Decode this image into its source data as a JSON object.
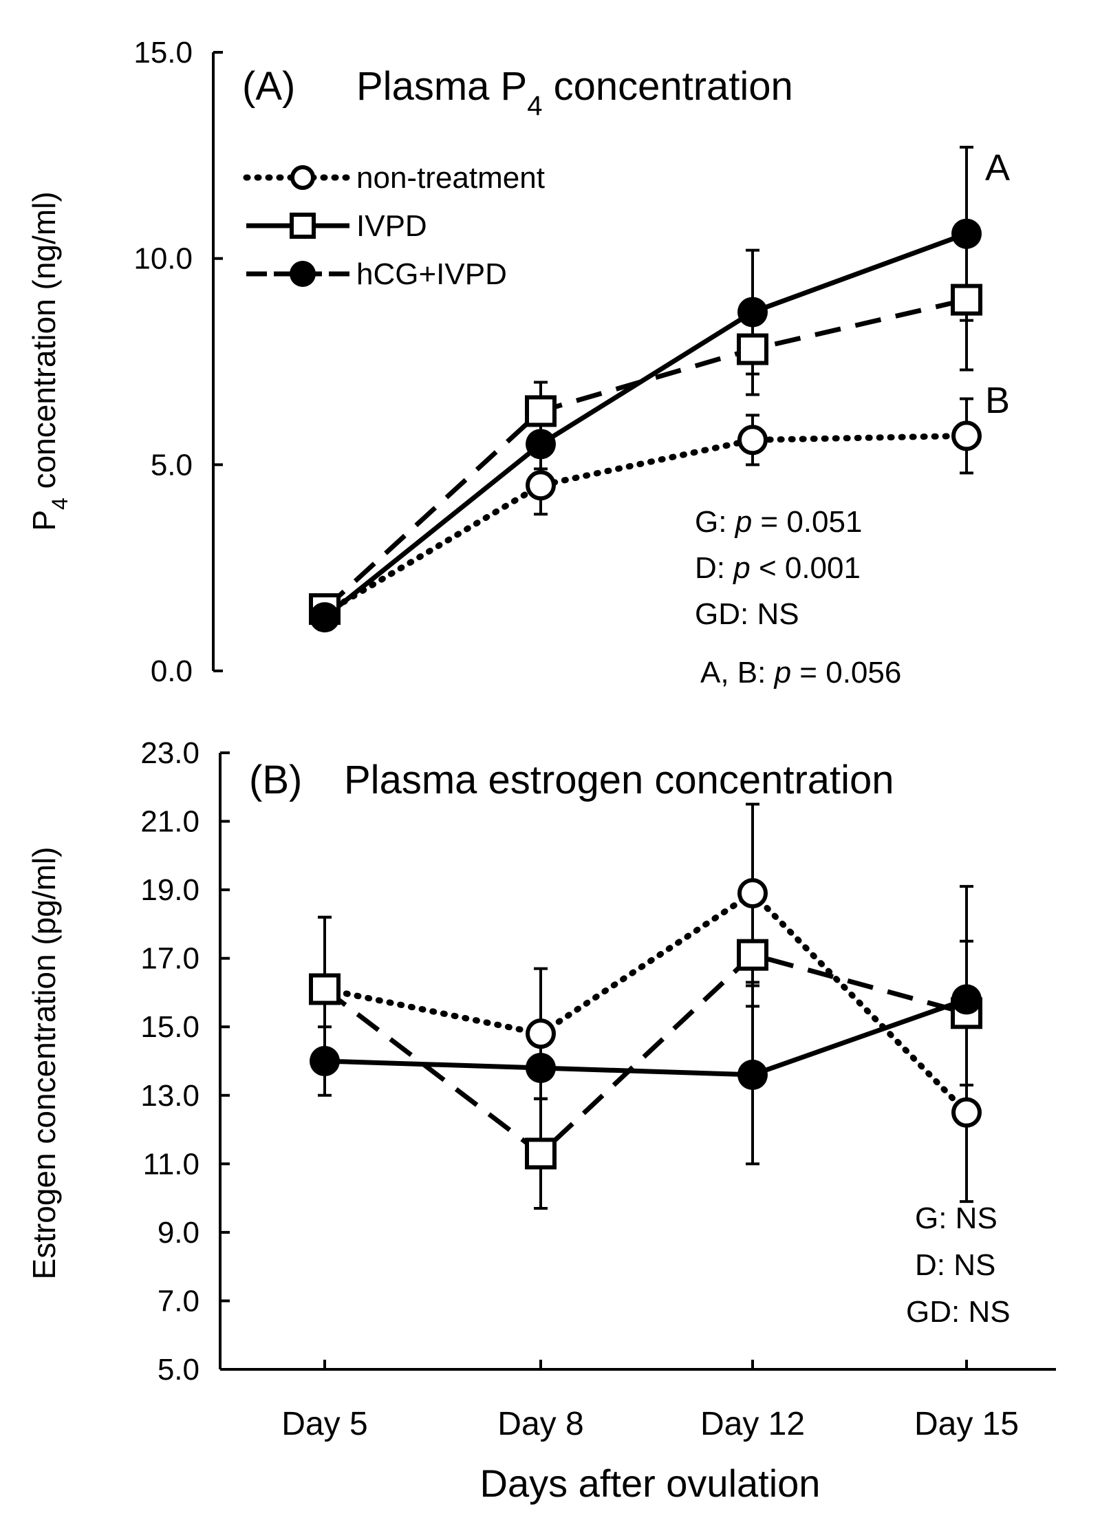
{
  "chart_data": [
    {
      "type": "line",
      "panel_label": "(A)",
      "title_main": "Plasma P",
      "title_sub": "4",
      "title_rest": " concentration",
      "ylabel_main": "P",
      "ylabel_sub": "4",
      "ylabel_rest": " concentration (ng/ml)",
      "ylim": [
        0,
        15
      ],
      "ytick_labels": [
        "0.0",
        "5.0",
        "10.0",
        "15.0"
      ],
      "ytick_values": [
        0,
        5,
        10,
        15
      ],
      "categories": [
        "Day 5",
        "Day 8",
        "Day 12",
        "Day 15"
      ],
      "series": [
        {
          "name": "non-treatment",
          "style": "dotted",
          "marker": "open-circle",
          "values": [
            1.4,
            4.5,
            5.6,
            5.7
          ],
          "errors": [
            0.3,
            0.7,
            0.6,
            0.9
          ]
        },
        {
          "name": "IVPD",
          "style": "dashed",
          "marker": "open-square",
          "values": [
            1.5,
            6.3,
            7.8,
            9.0
          ],
          "errors": [
            0.3,
            0.7,
            1.1,
            1.7
          ]
        },
        {
          "name": "hCG+IVPD",
          "style": "solid",
          "marker": "filled-circle",
          "values": [
            1.3,
            5.5,
            8.7,
            10.6
          ],
          "errors": [
            0.3,
            0.6,
            1.5,
            2.1
          ]
        }
      ],
      "legend": [
        "non-treatment",
        "IVPD",
        "hCG+IVPD"
      ],
      "annotations": {
        "letter_a": "A",
        "letter_b": "B",
        "g_prefix": "G: ",
        "g_p": "p",
        "g_rest": " = 0.051",
        "d_prefix": "D: ",
        "d_p": "p",
        "d_rest": " < 0.001",
        "gd": "GD: NS",
        "ab_prefix": "A, B: ",
        "ab_p": "p",
        "ab_rest": " = 0.056"
      }
    },
    {
      "type": "line",
      "panel_label": "(B)",
      "title": "Plasma estrogen concentration",
      "ylabel": "Estrogen concentration (pg/ml)",
      "xlabel": "Days after ovulation",
      "ylim": [
        5,
        23
      ],
      "ytick_labels": [
        "5.0",
        "7.0",
        "9.0",
        "11.0",
        "13.0",
        "15.0",
        "17.0",
        "19.0",
        "21.0",
        "23.0"
      ],
      "ytick_values": [
        5,
        7,
        9,
        11,
        13,
        15,
        17,
        19,
        21,
        23
      ],
      "categories": [
        "Day 5",
        "Day 8",
        "Day 12",
        "Day 15"
      ],
      "series": [
        {
          "name": "non-treatment",
          "style": "dotted",
          "marker": "open-circle",
          "values": [
            16.1,
            14.8,
            18.9,
            12.5
          ],
          "errors": [
            2.1,
            1.9,
            2.6,
            2.6
          ]
        },
        {
          "name": "IVPD",
          "style": "dashed",
          "marker": "open-square",
          "values": [
            16.1,
            11.3,
            17.1,
            15.4
          ],
          "errors": [
            2.1,
            1.6,
            1.5,
            2.1
          ]
        },
        {
          "name": "hCG+IVPD",
          "style": "solid",
          "marker": "filled-circle",
          "values": [
            14.0,
            13.8,
            13.6,
            15.8
          ],
          "errors": [
            1.0,
            0.9,
            2.6,
            3.3
          ]
        }
      ],
      "annotations": {
        "g": "G: NS",
        "d": "D: NS",
        "gd": "GD: NS"
      }
    }
  ]
}
